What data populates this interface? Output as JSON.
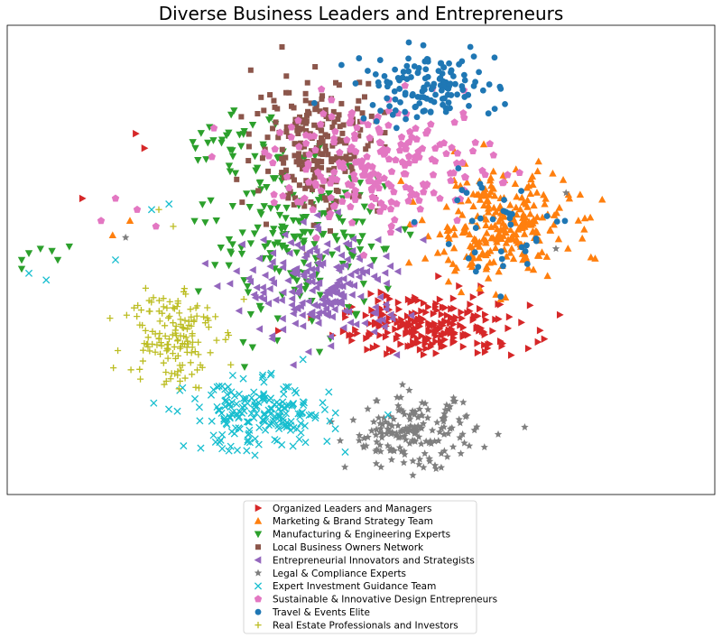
{
  "chart_data": {
    "type": "scatter",
    "title": "Diverse Business Leaders and Entrepreneurs",
    "xlabel": "",
    "ylabel": "",
    "axes_ticks": "hidden",
    "grid": false,
    "legend_placement": "bottom-center, below plot",
    "series": [
      {
        "name": "Organized Leaders and Managers",
        "marker": "triangle-right",
        "color": "#d62728",
        "count": 230,
        "clusters": [
          {
            "center": [
              0.5,
              -0.62
            ],
            "spread": [
              0.6,
              0.2
            ],
            "weight": 0.85
          },
          {
            "center": [
              0.38,
              -0.4
            ],
            "spread": [
              0.4,
              0.25
            ],
            "weight": 0.15
          }
        ],
        "outliers": [
          [
            -1.93,
            0.55
          ],
          [
            -1.56,
            1.13
          ],
          [
            -1.5,
            1.0
          ]
        ]
      },
      {
        "name": "Marketing & Brand Strategy Team",
        "marker": "triangle-up",
        "color": "#ff7f0e",
        "count": 260,
        "clusters": [
          {
            "center": [
              0.95,
              0.3
            ],
            "spread": [
              0.45,
              0.45
            ],
            "weight": 1.0
          }
        ],
        "outliers": [
          [
            -1.72,
            0.22
          ],
          [
            -1.6,
            0.35
          ]
        ]
      },
      {
        "name": "Manufacturing & Engineering Experts",
        "marker": "triangle-down",
        "color": "#2ca02c",
        "count": 220,
        "clusters": [
          {
            "center": [
              -0.45,
              0.2
            ],
            "spread": [
              0.55,
              0.7
            ],
            "weight": 0.9
          },
          {
            "center": [
              -0.9,
              1.05
            ],
            "spread": [
              0.35,
              0.25
            ],
            "weight": 0.1
          }
        ],
        "outliers": [
          [
            -2.35,
            0.0
          ],
          [
            -2.3,
            0.06
          ],
          [
            -2.22,
            0.1
          ],
          [
            -2.14,
            0.08
          ],
          [
            -2.1,
            0.0
          ],
          [
            -2.02,
            0.12
          ],
          [
            -2.36,
            -0.08
          ]
        ]
      },
      {
        "name": "Local Business Owners Network",
        "marker": "square",
        "color": "#8c564b",
        "count": 220,
        "clusters": [
          {
            "center": [
              -0.3,
              1.05
            ],
            "spread": [
              0.4,
              0.55
            ],
            "weight": 1.0
          }
        ],
        "outliers": []
      },
      {
        "name": "Entrepreneurial Innovators and Strategists",
        "marker": "triangle-left",
        "color": "#9467bd",
        "count": 200,
        "clusters": [
          {
            "center": [
              -0.25,
              -0.25
            ],
            "spread": [
              0.5,
              0.45
            ],
            "weight": 1.0
          }
        ],
        "outliers": []
      },
      {
        "name": "Legal & Compliance Experts",
        "marker": "star",
        "color": "#7f7f7f",
        "count": 180,
        "clusters": [
          {
            "center": [
              0.35,
              -1.55
            ],
            "spread": [
              0.4,
              0.28
            ],
            "weight": 0.95
          }
        ],
        "outliers": [
          [
            1.42,
            0.6
          ],
          [
            -1.63,
            0.2
          ],
          [
            1.35,
            0.1
          ]
        ]
      },
      {
        "name": "Expert Investment Guidance Team",
        "marker": "x",
        "color": "#17becf",
        "count": 200,
        "clusters": [
          {
            "center": [
              -0.7,
              -1.4
            ],
            "spread": [
              0.45,
              0.28
            ],
            "weight": 1.0
          }
        ],
        "outliers": [
          [
            -2.3,
            -0.12
          ],
          [
            -2.18,
            -0.18
          ],
          [
            -1.7,
            0.0
          ],
          [
            -1.45,
            0.45
          ],
          [
            -1.33,
            0.5
          ]
        ]
      },
      {
        "name": "Sustainable & Innovative Design Entrepreneurs",
        "marker": "pentagon",
        "color": "#e377c2",
        "count": 220,
        "clusters": [
          {
            "center": [
              0.15,
              0.85
            ],
            "spread": [
              0.7,
              0.5
            ],
            "weight": 1.0
          }
        ],
        "outliers": [
          [
            -1.8,
            0.35
          ],
          [
            -1.7,
            0.55
          ],
          [
            -1.55,
            0.45
          ],
          [
            -1.42,
            0.3
          ]
        ]
      },
      {
        "name": "Travel & Events Elite",
        "marker": "circle",
        "color": "#1f77b4",
        "count": 170,
        "clusters": [
          {
            "center": [
              0.45,
              1.55
            ],
            "spread": [
              0.45,
              0.28
            ],
            "weight": 0.78
          },
          {
            "center": [
              0.95,
              0.3
            ],
            "spread": [
              0.45,
              0.4
            ],
            "weight": 0.22
          }
        ],
        "outliers": []
      },
      {
        "name": "Real Estate Professionals and Investors",
        "marker": "plus",
        "color": "#bcbd22",
        "count": 150,
        "clusters": [
          {
            "center": [
              -1.32,
              -0.65
            ],
            "spread": [
              0.28,
              0.45
            ],
            "weight": 1.0
          }
        ],
        "outliers": [
          [
            -1.4,
            0.45
          ],
          [
            -1.3,
            0.3
          ]
        ]
      }
    ],
    "xlim": [
      -2.45,
      2.45
    ],
    "ylim": [
      -2.1,
      2.1
    ]
  }
}
